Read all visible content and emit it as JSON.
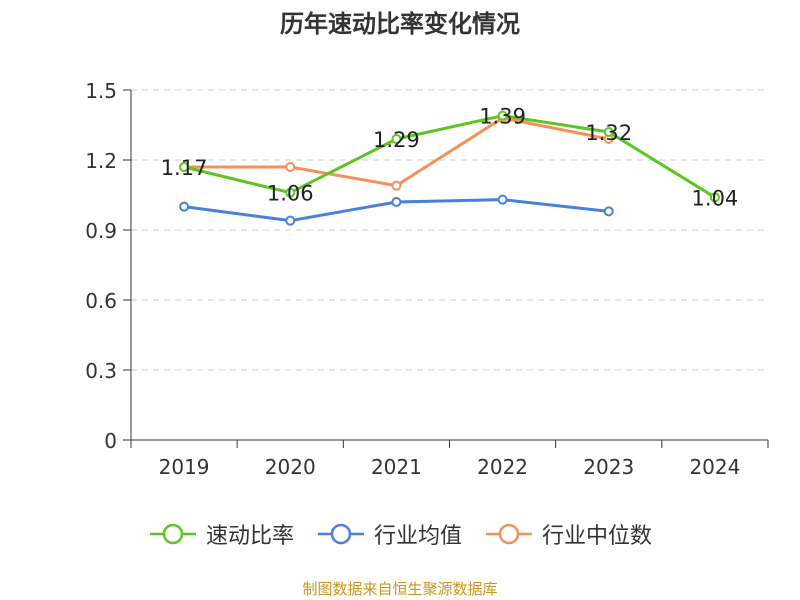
{
  "chart_data": {
    "type": "line",
    "title": "历年速动比率变化情况",
    "categories": [
      "2019",
      "2020",
      "2021",
      "2022",
      "2023",
      "2024"
    ],
    "ylim": [
      0,
      1.5
    ],
    "yticks": [
      "0",
      "0.3",
      "0.6",
      "0.9",
      "1.2",
      "1.5"
    ],
    "ytick_values": [
      0,
      0.3,
      0.6,
      0.9,
      1.2,
      1.5
    ],
    "grid": true,
    "legend_position": "bottom",
    "series": [
      {
        "name": "速动比率",
        "color": "#5cc523",
        "values": [
          1.17,
          1.06,
          1.29,
          1.39,
          1.32,
          1.04
        ],
        "labels": [
          "1.17",
          "1.06",
          "1.29",
          "1.39",
          "1.32",
          "1.04"
        ]
      },
      {
        "name": "行业均值",
        "color": "#4a7fdc",
        "values": [
          1.0,
          0.94,
          1.02,
          1.03,
          0.98,
          null
        ]
      },
      {
        "name": "行业中位数",
        "color": "#f39159",
        "values": [
          1.17,
          1.17,
          1.09,
          1.38,
          1.29,
          null
        ]
      }
    ]
  },
  "source": "制图数据来自恒生聚源数据库"
}
